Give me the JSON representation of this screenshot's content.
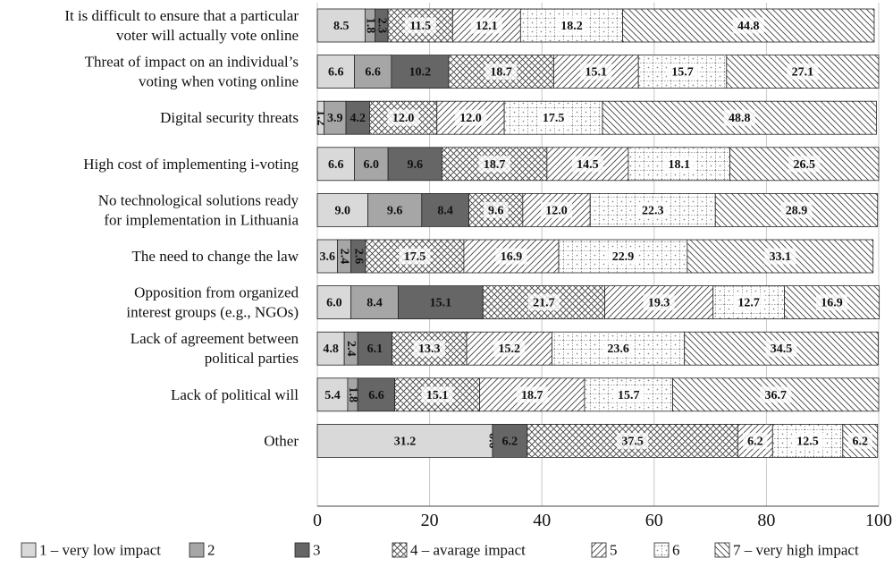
{
  "chart_data": {
    "type": "bar",
    "orientation": "horizontal",
    "stacked": true,
    "xlim": [
      0,
      100
    ],
    "x_ticks": [
      "0",
      "20",
      "40",
      "60",
      "80",
      "100"
    ],
    "legend_position": "bottom",
    "categories": [
      [
        "It is difficult to ensure that a particular",
        "voter will actually vote online"
      ],
      [
        "Threat of impact on an individual’s",
        "voting when voting online"
      ],
      [
        "Digital security threats"
      ],
      [
        "High cost of implementing i-voting"
      ],
      [
        "No technological solutions ready",
        "for implementation in Lithuania"
      ],
      [
        "The need to change the law"
      ],
      [
        "Opposition from organized",
        "interest groups (e.g., NGOs)"
      ],
      [
        "Lack of agreement between",
        "political parties"
      ],
      [
        "Lack of political will"
      ],
      [
        "Other"
      ]
    ],
    "series": [
      {
        "name": "1 – very low impact",
        "fill": "#d9d9d9",
        "pattern": "solid",
        "values": [
          8.5,
          6.6,
          1.2,
          6.6,
          9.0,
          3.6,
          6.0,
          4.8,
          5.4,
          31.2
        ],
        "labels": [
          "8.5",
          "6.6",
          "1.2",
          "6.6",
          "9.0",
          "3.6",
          "6.0",
          "4.8",
          "5.4",
          "31.2"
        ]
      },
      {
        "name": "2",
        "fill": "#a6a6a6",
        "pattern": "solid",
        "values": [
          1.8,
          6.6,
          3.9,
          6.0,
          9.6,
          2.4,
          8.4,
          2.4,
          1.8,
          0.0
        ],
        "labels": [
          "1.8",
          "6.6",
          "3.9",
          "6.0",
          "9.6",
          "2.4",
          "8.4",
          "2.4",
          "1.8",
          "0.0"
        ]
      },
      {
        "name": "3",
        "fill": "#666666",
        "pattern": "solid",
        "values": [
          2.3,
          10.2,
          4.2,
          9.6,
          8.4,
          2.6,
          15.1,
          6.1,
          6.6,
          6.2
        ],
        "labels": [
          "2.3",
          "10.2",
          "4.2",
          "9.6",
          "8.4",
          "2.6",
          "15.1",
          "6.1",
          "6.6",
          "6.2"
        ]
      },
      {
        "name": "4 – avarage impact",
        "fill": "#ffffff",
        "pattern": "crosshatch",
        "values": [
          11.5,
          18.7,
          12.0,
          18.7,
          9.6,
          17.5,
          21.7,
          13.3,
          15.1,
          37.5
        ],
        "labels": [
          "11.5",
          "18.7",
          "12.0",
          "18.7",
          "9.6",
          "17.5",
          "21.7",
          "13.3",
          "15.1",
          "37.5"
        ]
      },
      {
        "name": "5",
        "fill": "#ffffff",
        "pattern": "forward-diagonal",
        "values": [
          12.1,
          15.1,
          12.0,
          14.5,
          12.0,
          16.9,
          19.3,
          15.2,
          18.7,
          6.2
        ],
        "labels": [
          "12.1",
          "15.1",
          "12.0",
          "14.5",
          "12.0",
          "16.9",
          "19.3",
          "15.2",
          "18.7",
          "6.2"
        ]
      },
      {
        "name": "6",
        "fill": "#ffffff",
        "pattern": "dotted-grid",
        "values": [
          18.2,
          15.7,
          17.5,
          18.1,
          22.3,
          22.9,
          12.7,
          23.6,
          15.7,
          12.5
        ],
        "labels": [
          "18.2",
          "15.7",
          "17.5",
          "18.1",
          "22.3",
          "22.9",
          "12.7",
          "23.6",
          "15.7",
          "12.5"
        ]
      },
      {
        "name": "7 – very high impact",
        "fill": "#ffffff",
        "pattern": "back-diagonal",
        "values": [
          44.8,
          27.1,
          48.8,
          26.5,
          28.9,
          33.1,
          16.9,
          34.5,
          36.7,
          6.2
        ],
        "labels": [
          "44.8",
          "27.1",
          "48.8",
          "26.5",
          "28.9",
          "33.1",
          "16.9",
          "34.5",
          "36.7",
          "6.2"
        ]
      }
    ]
  }
}
